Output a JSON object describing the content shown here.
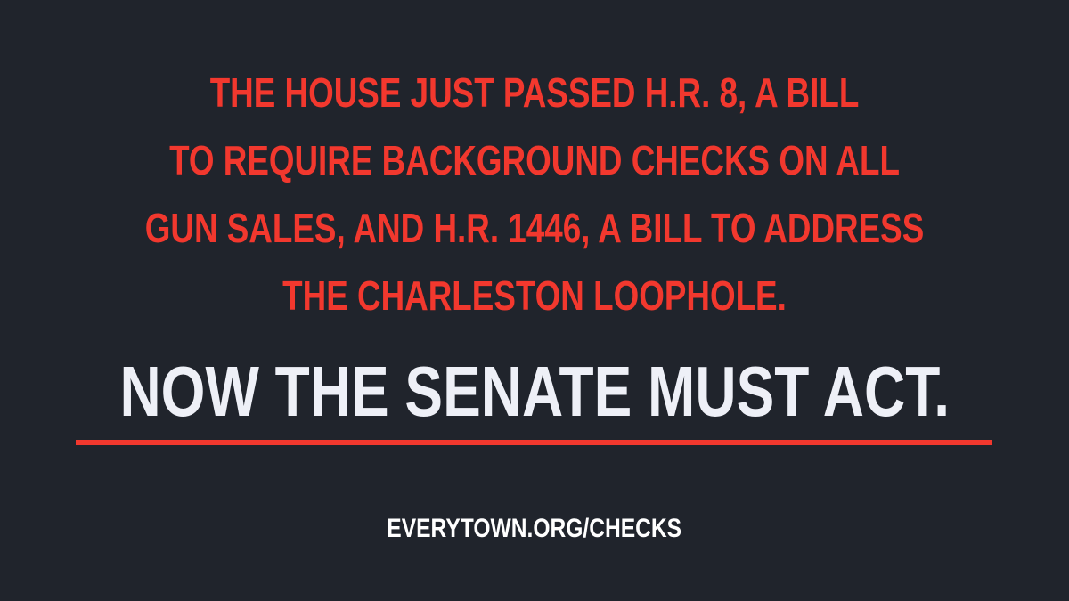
{
  "colors": {
    "background": "#20242c",
    "headline": "#f2382e",
    "cta": "#eef0f7",
    "underline": "#f2382e",
    "url": "#ffffff"
  },
  "headline": {
    "lines": [
      "THE HOUSE JUST PASSED H.R. 8, A BILL",
      "TO REQUIRE BACKGROUND CHECKS ON ALL",
      "GUN SALES, AND H.R. 1446, A BILL TO ADDRESS",
      "THE CHARLESTON LOOPHOLE."
    ]
  },
  "cta": {
    "text": "NOW THE SENATE MUST ACT."
  },
  "footer": {
    "url": "EVERYTOWN.ORG/CHECKS"
  }
}
